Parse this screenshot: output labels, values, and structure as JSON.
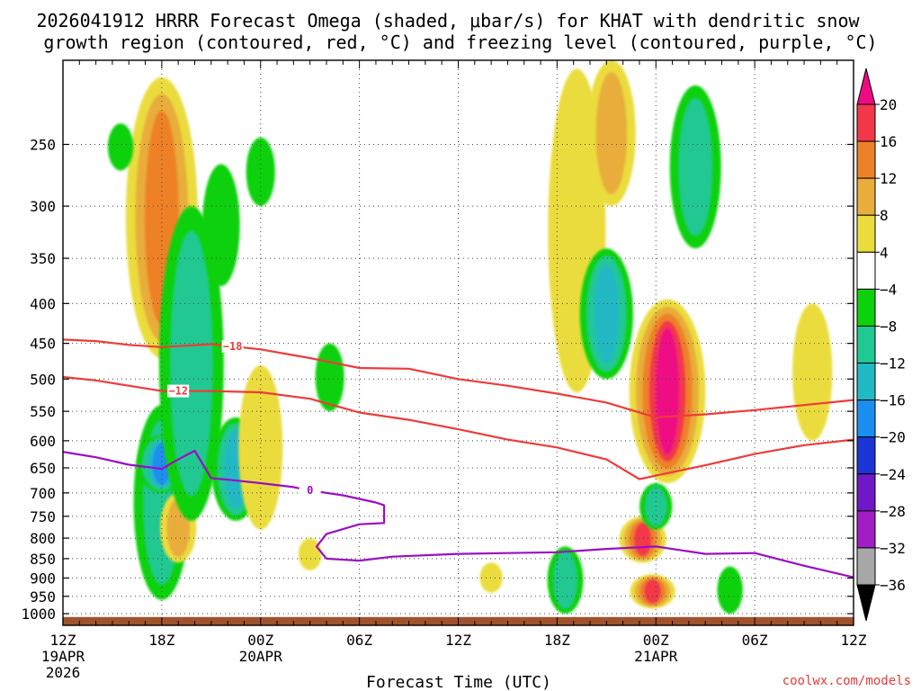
{
  "title_line1": "2026041912 HRRR Forecast Omega (shaded, μbar/s) for KHAT with dendritic snow",
  "title_line2": "growth region (contoured, red, °C) and freezing level (contoured, purple, °C)",
  "watermark": "coolwx.com/models",
  "chart_data": {
    "type": "heatmap",
    "title": "2026041912 HRRR Forecast Omega (shaded, μbar/s) for KHAT with dendritic snow growth region (contoured, red, °C) and freezing level (contoured, purple, °C)",
    "xlabel": "Forecast Time (UTC)",
    "ylabel": "",
    "y_axis": {
      "units": "hPa",
      "scale": "log-pressure",
      "range": [
        1035,
        195
      ],
      "ticks": [
        250,
        300,
        350,
        400,
        450,
        500,
        550,
        600,
        650,
        700,
        750,
        800,
        850,
        900,
        950,
        1000
      ]
    },
    "x_axis": {
      "units": "forecast hour",
      "range": [
        0,
        48
      ],
      "ticks": [
        {
          "hour": 0,
          "label": "12Z",
          "sub1": "19APR",
          "sub2": "2026"
        },
        {
          "hour": 6,
          "label": "18Z"
        },
        {
          "hour": 12,
          "label": "00Z",
          "sub1": "20APR"
        },
        {
          "hour": 18,
          "label": "06Z"
        },
        {
          "hour": 24,
          "label": "12Z"
        },
        {
          "hour": 30,
          "label": "18Z"
        },
        {
          "hour": 36,
          "label": "00Z",
          "sub1": "21APR"
        },
        {
          "hour": 42,
          "label": "06Z"
        },
        {
          "hour": 48,
          "label": "12Z"
        }
      ],
      "minor_every_hours": 1
    },
    "colorbar": {
      "labels": [
        "20",
        "16",
        "12",
        "8",
        "4",
        "−4",
        "−8",
        "−12",
        "−16",
        "−20",
        "−24",
        "−28",
        "−32",
        "−36"
      ],
      "bins": [
        {
          "range": ">20",
          "color": "#ef0a83"
        },
        {
          "range": "16 to 20",
          "color": "#f2374a"
        },
        {
          "range": "12 to 16",
          "color": "#ee8128"
        },
        {
          "range": "8 to 12",
          "color": "#e8ad3b"
        },
        {
          "range": "4 to 8",
          "color": "#ebdc3e"
        },
        {
          "range": "-4 to 4",
          "color": "#ffffff"
        },
        {
          "range": "-8 to -4",
          "color": "#0dd10b"
        },
        {
          "range": "-12 to -8",
          "color": "#20c892"
        },
        {
          "range": "-16 to -12",
          "color": "#21b9c4"
        },
        {
          "range": "-20 to -16",
          "color": "#1a8ff0"
        },
        {
          "range": "-24 to -20",
          "color": "#1c36d6"
        },
        {
          "range": "-28 to -24",
          "color": "#6f18c6"
        },
        {
          "range": "-32 to -28",
          "color": "#a01ec3"
        },
        {
          "range": "-36 to -32",
          "color": "#a7a7a7"
        },
        {
          "range": "<-36",
          "color": "#000000"
        }
      ]
    },
    "omega_features": [
      {
        "hour": 6.0,
        "p_top": 205,
        "p_bot": 470,
        "value": 14,
        "note": "ascent core 18Z 19APR"
      },
      {
        "hour": 6.0,
        "p_top": 540,
        "p_bot": 960,
        "value": -12,
        "note": "descent column"
      },
      {
        "hour": 6.0,
        "p_top": 590,
        "p_bot": 700,
        "value": -20
      },
      {
        "hour": 7.0,
        "p_top": 700,
        "p_bot": 860,
        "value": 12
      },
      {
        "hour": 3.5,
        "p_top": 235,
        "p_bot": 270,
        "value": -6
      },
      {
        "hour": 7.8,
        "p_top": 300,
        "p_bot": 760,
        "value": -10
      },
      {
        "hour": 9.6,
        "p_top": 265,
        "p_bot": 380,
        "value": -6
      },
      {
        "hour": 10.5,
        "p_top": 560,
        "p_bot": 760,
        "value": -14
      },
      {
        "hour": 12.0,
        "p_top": 480,
        "p_bot": 780,
        "value": 8
      },
      {
        "hour": 12.0,
        "p_top": 245,
        "p_bot": 300,
        "value": -6
      },
      {
        "hour": 16.2,
        "p_top": 450,
        "p_bot": 550,
        "value": -6
      },
      {
        "hour": 15.0,
        "p_top": 800,
        "p_bot": 880,
        "value": 6
      },
      {
        "hour": 26.0,
        "p_top": 860,
        "p_bot": 940,
        "value": 6
      },
      {
        "hour": 30.5,
        "p_top": 820,
        "p_bot": 1000,
        "value": -10
      },
      {
        "hour": 31.2,
        "p_top": 200,
        "p_bot": 520,
        "value": 6
      },
      {
        "hour": 33.3,
        "p_top": 195,
        "p_bot": 300,
        "value": 12
      },
      {
        "hour": 33.0,
        "p_top": 340,
        "p_bot": 500,
        "value": -14
      },
      {
        "hour": 36.7,
        "p_top": 395,
        "p_bot": 680,
        "value": 22,
        "note": "strong ascent core 00Z 21APR"
      },
      {
        "hour": 35.2,
        "p_top": 750,
        "p_bot": 860,
        "value": 18
      },
      {
        "hour": 35.8,
        "p_top": 890,
        "p_bot": 985,
        "value": 20
      },
      {
        "hour": 36.0,
        "p_top": 680,
        "p_bot": 780,
        "value": -10
      },
      {
        "hour": 38.4,
        "p_top": 210,
        "p_bot": 340,
        "value": -12
      },
      {
        "hour": 40.5,
        "p_top": 870,
        "p_bot": 1000,
        "value": -6
      },
      {
        "hour": 45.5,
        "p_top": 400,
        "p_bot": 600,
        "value": 5
      }
    ],
    "series": [
      {
        "name": "-18 °C isotherm",
        "color": "#ef3a3a",
        "label": "−18",
        "label_hour": 10.3,
        "points": [
          [
            0,
            445
          ],
          [
            2,
            447
          ],
          [
            4,
            452
          ],
          [
            6,
            455
          ],
          [
            9,
            451
          ],
          [
            12,
            458
          ],
          [
            15,
            470
          ],
          [
            18,
            484
          ],
          [
            21,
            485
          ],
          [
            24,
            500
          ],
          [
            27,
            510
          ],
          [
            30,
            522
          ],
          [
            33,
            536
          ],
          [
            36,
            560
          ],
          [
            39,
            555
          ],
          [
            42,
            548
          ],
          [
            45,
            540
          ],
          [
            48,
            532
          ]
        ]
      },
      {
        "name": "-12 °C isotherm",
        "color": "#ef3a3a",
        "label": "−12",
        "label_hour": 7.0,
        "points": [
          [
            0,
            497
          ],
          [
            2,
            502
          ],
          [
            4,
            510
          ],
          [
            6,
            518
          ],
          [
            9,
            518
          ],
          [
            12,
            520
          ],
          [
            15,
            530
          ],
          [
            18,
            552
          ],
          [
            21,
            564
          ],
          [
            24,
            580
          ],
          [
            27,
            598
          ],
          [
            30,
            612
          ],
          [
            33,
            634
          ],
          [
            35,
            672
          ],
          [
            36,
            665
          ],
          [
            39,
            645
          ],
          [
            42,
            624
          ],
          [
            45,
            608
          ],
          [
            48,
            598
          ]
        ]
      },
      {
        "name": "0 °C freezing level",
        "color": "#9a0ec4",
        "label": "0",
        "label_hour": 15.0,
        "points": [
          [
            0,
            620
          ],
          [
            2,
            630
          ],
          [
            4,
            644
          ],
          [
            6,
            652
          ],
          [
            7,
            634
          ],
          [
            8,
            618
          ],
          [
            9,
            670
          ],
          [
            10,
            673
          ],
          [
            12,
            680
          ],
          [
            14,
            688
          ],
          [
            15,
            695
          ],
          [
            17,
            705
          ],
          [
            19,
            720
          ],
          [
            19.5,
            726
          ],
          [
            19.5,
            765
          ],
          [
            18,
            768
          ],
          [
            16,
            790
          ],
          [
            15.4,
            820
          ],
          [
            16,
            850
          ],
          [
            18,
            855
          ],
          [
            20,
            845
          ],
          [
            24,
            838
          ],
          [
            27,
            836
          ],
          [
            30,
            834
          ],
          [
            33,
            826
          ],
          [
            36,
            820
          ],
          [
            39,
            838
          ],
          [
            42,
            836
          ],
          [
            45,
            868
          ],
          [
            48,
            898
          ]
        ]
      }
    ],
    "ground_surface_hPa": 1010
  }
}
